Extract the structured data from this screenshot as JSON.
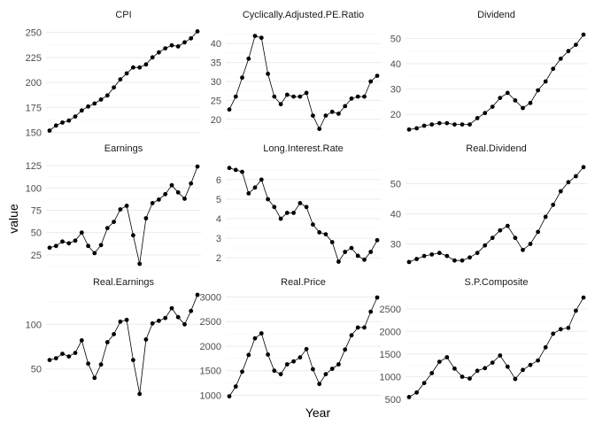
{
  "chart_data": {
    "type": "line",
    "xlabel": "Year",
    "ylabel": "value",
    "grid": true,
    "facets": [
      {
        "name": "CPI",
        "yticks": [
          150,
          175,
          200,
          225,
          250
        ],
        "ylim": [
          148,
          254
        ],
        "values": [
          152,
          157,
          160,
          162,
          166,
          172,
          176,
          179,
          183,
          187,
          195,
          203,
          209,
          215,
          215,
          218,
          225,
          230,
          234,
          237,
          236,
          240,
          244,
          251
        ]
      },
      {
        "name": "Cyclically.Adjusted.PE.Ratio",
        "yticks": [
          20,
          25,
          30,
          35,
          40
        ],
        "ylim": [
          16,
          44
        ],
        "values": [
          22.6,
          26,
          31,
          36,
          42,
          41.5,
          32,
          26,
          24,
          26.5,
          26,
          26,
          27,
          21,
          17.5,
          21,
          22,
          21.5,
          23.5,
          25.5,
          26,
          26,
          30,
          31.5
        ]
      },
      {
        "name": "Dividend",
        "yticks": [
          20,
          30,
          40,
          50
        ],
        "ylim": [
          12,
          54
        ],
        "values": [
          14,
          14.5,
          15.5,
          16,
          16.5,
          16.5,
          16,
          16,
          16,
          18.5,
          20.5,
          23,
          26.5,
          28.5,
          25.5,
          22.5,
          24.5,
          29.5,
          33,
          38,
          42,
          45,
          47.5,
          51.5
        ]
      },
      {
        "name": "Earnings",
        "yticks": [
          25,
          50,
          75,
          100,
          125
        ],
        "ylim": [
          12,
          130
        ],
        "values": [
          33,
          35,
          40,
          38,
          41,
          50,
          35,
          27,
          36,
          55,
          62,
          76,
          80,
          47,
          15,
          66,
          83,
          87,
          93,
          103,
          95,
          88,
          105,
          124
        ]
      },
      {
        "name": "Long.Interest.Rate",
        "yticks": [
          2,
          3,
          4,
          5,
          6
        ],
        "ylim": [
          1.55,
          6.95
        ],
        "values": [
          6.6,
          6.5,
          6.4,
          5.3,
          5.6,
          6,
          5,
          4.6,
          4,
          4.3,
          4.3,
          4.8,
          4.6,
          3.7,
          3.3,
          3.2,
          2.8,
          1.8,
          2.3,
          2.5,
          2.1,
          1.9,
          2.3,
          2.9
        ]
      },
      {
        "name": "Real.Dividend",
        "yticks": [
          30,
          40,
          50
        ],
        "ylim": [
          22.5,
          57.5
        ],
        "values": [
          24,
          25,
          26,
          26.5,
          27,
          26,
          24.5,
          24.5,
          25.5,
          27,
          29.5,
          32,
          34.5,
          36,
          32,
          28,
          30,
          34,
          39,
          43,
          47.5,
          50.5,
          52.5,
          55.5
        ]
      },
      {
        "name": "Real.Earnings",
        "yticks": [
          50,
          100
        ],
        "ylim": [
          15,
          135
        ],
        "values": [
          60,
          62,
          67,
          64,
          68,
          82,
          56,
          40,
          55,
          80,
          89,
          103,
          105,
          60,
          22,
          83,
          101,
          104,
          107,
          118,
          108,
          100,
          115,
          133
        ]
      },
      {
        "name": "Real.Price",
        "yticks": [
          1000,
          1500,
          2000,
          2500,
          3000
        ],
        "ylim": [
          900,
          3080
        ],
        "values": [
          980,
          1180,
          1480,
          1820,
          2160,
          2260,
          1830,
          1500,
          1430,
          1630,
          1690,
          1770,
          1940,
          1530,
          1230,
          1430,
          1540,
          1630,
          1930,
          2220,
          2380,
          2380,
          2700,
          2990
        ]
      },
      {
        "name": "S.P.Composite",
        "yticks": [
          500,
          1000,
          1500,
          2000,
          2500
        ],
        "ylim": [
          480,
          2850
        ],
        "values": [
          550,
          650,
          860,
          1080,
          1330,
          1430,
          1180,
          1000,
          960,
          1130,
          1190,
          1310,
          1470,
          1220,
          950,
          1150,
          1260,
          1360,
          1650,
          1950,
          2050,
          2080,
          2460,
          2750
        ]
      }
    ]
  }
}
